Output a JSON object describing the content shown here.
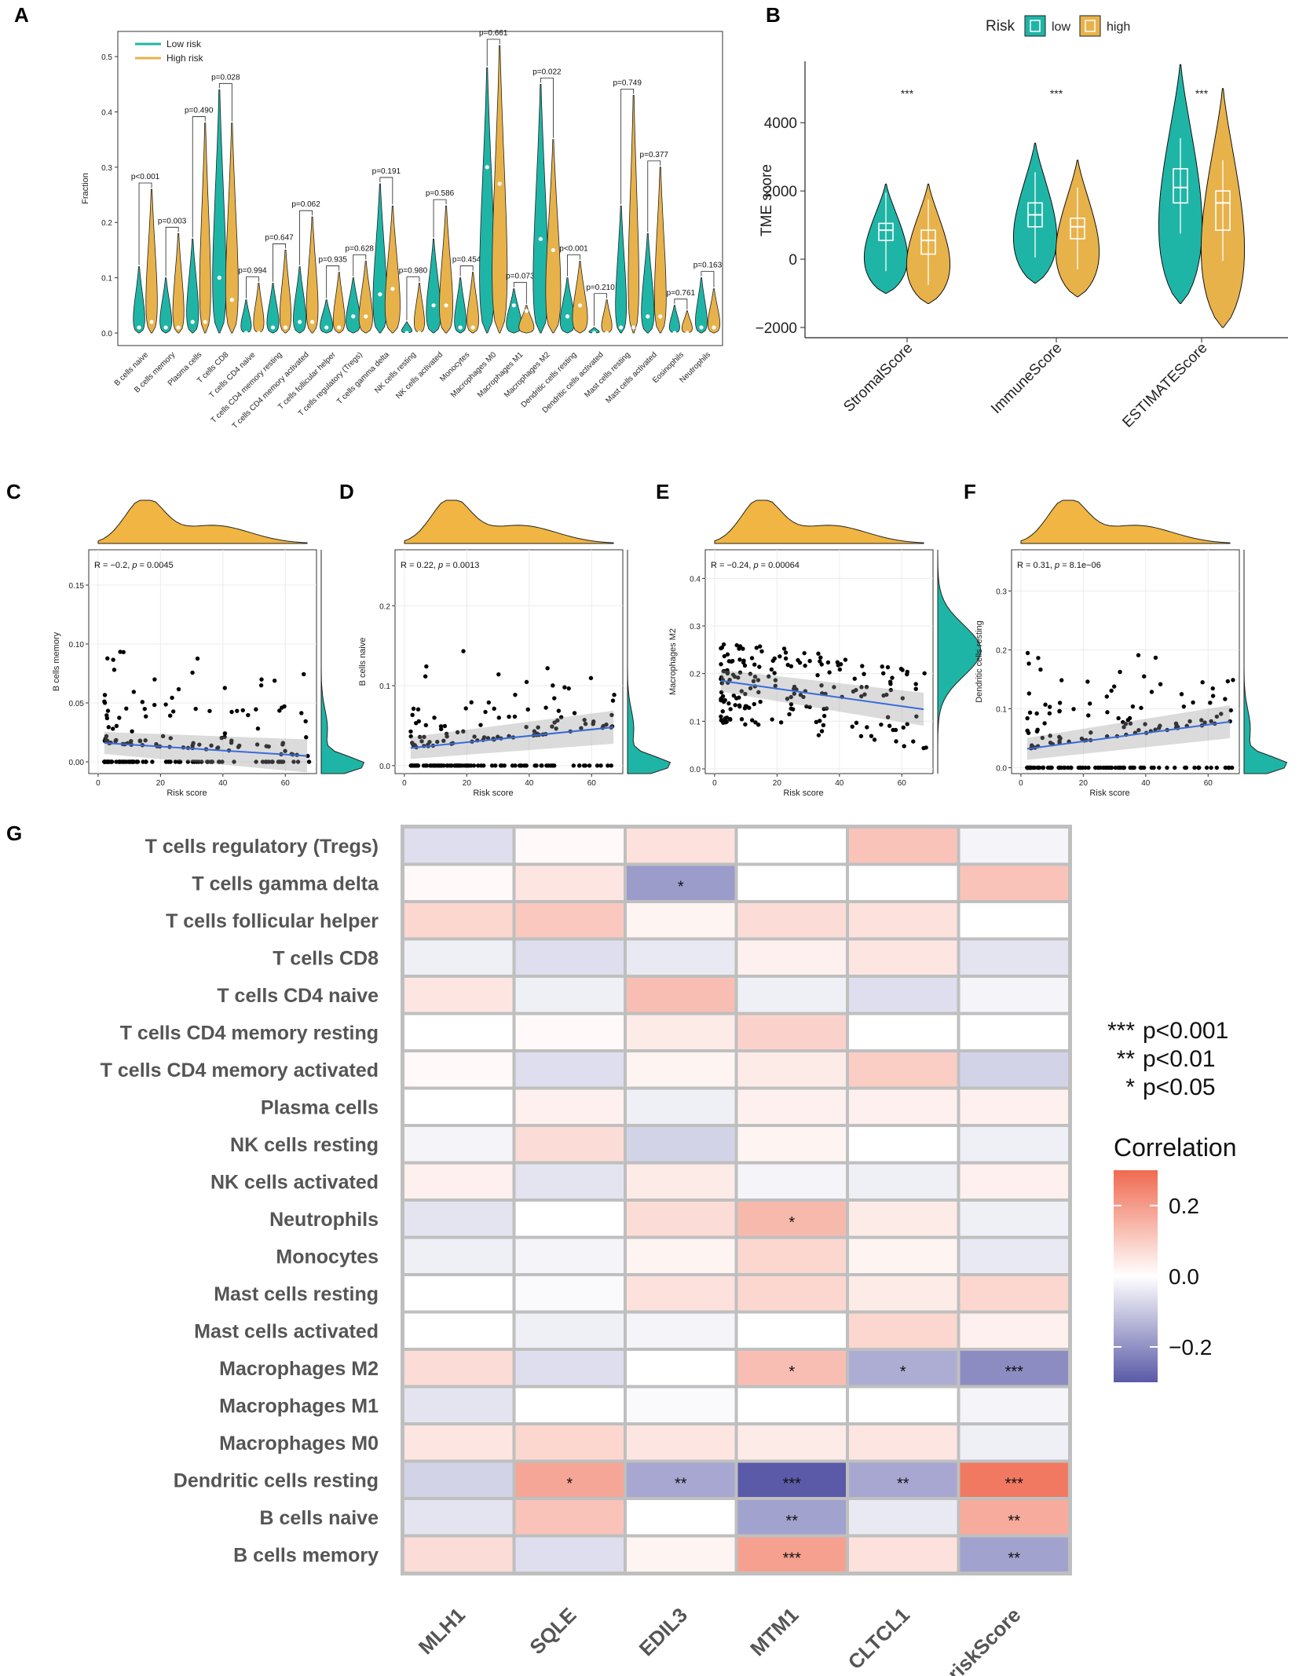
{
  "chart_data": [
    {
      "panel": "A",
      "type": "violin",
      "ylabel": "Fraction",
      "ylim": [
        0,
        0.52
      ],
      "yticks": [
        "0.0",
        "0.1",
        "0.2",
        "0.3",
        "0.4",
        "0.5"
      ],
      "legend": [
        {
          "label": "Low risk",
          "color": "#1fb5a6"
        },
        {
          "label": "High risk",
          "color": "#e8b24a"
        }
      ],
      "categories": [
        "B cells naive",
        "B cells memory",
        "Plasma cells",
        "T cells CD8",
        "T cells CD4 naive",
        "T cells CD4 memory resting",
        "T cells CD4 memory activated",
        "T cells follicular helper",
        "T cells regulatory (Tregs)",
        "T cells gamma delta",
        "NK cells resting",
        "NK cells activated",
        "Monocytes",
        "Macrophages M0",
        "Macrophages M1",
        "Macrophages M2",
        "Dendritic cells resting",
        "Dendritic cells activated",
        "Mast cells resting",
        "Mast cells activated",
        "Eosinophils",
        "Neutrophils"
      ],
      "pvalues": [
        "p<0.001",
        "p=0.003",
        "p=0.490",
        "p=0.028",
        "p=0.994",
        "p=0.647",
        "p=0.062",
        "p=0.935",
        "p=0.628",
        "p=0.191",
        "p=0.980",
        "p=0.586",
        "p=0.454",
        "p=0.661",
        "p=0.073",
        "p=0.022",
        "p<0.001",
        "p=0.210",
        "p=0.749",
        "p=0.377",
        "p=0.761",
        "p=0.163"
      ],
      "low_max": [
        0.12,
        0.1,
        0.17,
        0.44,
        0.06,
        0.09,
        0.12,
        0.06,
        0.1,
        0.27,
        0.02,
        0.17,
        0.1,
        0.48,
        0.08,
        0.45,
        0.1,
        0.01,
        0.23,
        0.18,
        0.05,
        0.1
      ],
      "high_max": [
        0.26,
        0.18,
        0.38,
        0.38,
        0.09,
        0.15,
        0.21,
        0.11,
        0.13,
        0.23,
        0.09,
        0.23,
        0.11,
        0.52,
        0.05,
        0.35,
        0.13,
        0.06,
        0.43,
        0.3,
        0.04,
        0.08
      ],
      "low_median": [
        0.01,
        0.01,
        0.02,
        0.1,
        0.0,
        0.01,
        0.02,
        0.01,
        0.03,
        0.07,
        0.0,
        0.05,
        0.01,
        0.3,
        0.05,
        0.17,
        0.03,
        0.0,
        0.01,
        0.03,
        0.0,
        0.01
      ],
      "high_median": [
        0.02,
        0.01,
        0.02,
        0.06,
        0.0,
        0.01,
        0.02,
        0.01,
        0.03,
        0.08,
        0.0,
        0.05,
        0.01,
        0.27,
        0.04,
        0.15,
        0.05,
        0.0,
        0.01,
        0.03,
        0.0,
        0.01
      ]
    },
    {
      "panel": "B",
      "type": "violin",
      "ylabel": "TME score",
      "ylim": [
        -2300,
        5800
      ],
      "yticks": [
        -2000,
        0,
        2000,
        4000
      ],
      "ytick_labels": [
        "−2000",
        "0",
        "2000",
        "4000"
      ],
      "legend_title": "Risk",
      "legend": [
        {
          "label": "low",
          "color": "#1fb5a6"
        },
        {
          "label": "high",
          "color": "#e8b24a"
        }
      ],
      "categories": [
        "StromalScore",
        "ImmuneScore",
        "ESTIMATEScore"
      ],
      "significance": [
        "***",
        "***",
        "***"
      ],
      "low": {
        "median": [
          850,
          1300,
          2100
        ],
        "q1": [
          550,
          950,
          1650
        ],
        "q3": [
          1050,
          1650,
          2650
        ],
        "min": [
          -1000,
          -700,
          -1300
        ],
        "max": [
          2200,
          3400,
          5700
        ]
      },
      "high": {
        "median": [
          550,
          950,
          1650
        ],
        "q1": [
          150,
          600,
          850
        ],
        "q3": [
          850,
          1200,
          2000
        ],
        "min": [
          -1300,
          -1100,
          -2000
        ],
        "max": [
          2200,
          2900,
          5000
        ]
      }
    },
    {
      "panel": "C",
      "type": "scatter",
      "annotation_prefix": "R = −0.2, ",
      "annotation_p": "p",
      "annotation_suffix": " = 0.0045",
      "xlabel": "Risk score",
      "ylabel": "B cells memory",
      "xlim": [
        -3,
        70
      ],
      "ylim": [
        -0.01,
        0.18
      ],
      "xticks": [
        0,
        20,
        40,
        60
      ],
      "yticks": [
        0.0,
        0.05,
        0.1,
        0.15
      ],
      "ytick_labels": [
        "0.00",
        "0.05",
        "0.10",
        "0.15"
      ],
      "fit": {
        "x0": 2,
        "y0": 0.016,
        "x1": 67,
        "y1": 0.005
      }
    },
    {
      "panel": "D",
      "type": "scatter",
      "annotation_prefix": "R = 0.22, ",
      "annotation_p": "p",
      "annotation_suffix": " = 0.0013",
      "xlabel": "Risk score",
      "ylabel": "B cells naive",
      "xlim": [
        -3,
        70
      ],
      "ylim": [
        -0.01,
        0.27
      ],
      "xticks": [
        0,
        20,
        40,
        60
      ],
      "yticks": [
        0.0,
        0.1,
        0.2
      ],
      "ytick_labels": [
        "0.0",
        "0.1",
        "0.2"
      ],
      "fit": {
        "x0": 2,
        "y0": 0.022,
        "x1": 67,
        "y1": 0.048
      }
    },
    {
      "panel": "E",
      "type": "scatter",
      "annotation_prefix": "R = −0.24, ",
      "annotation_p": "p",
      "annotation_suffix": " = 0.00064",
      "xlabel": "Risk score",
      "ylabel": "Macrophages M2",
      "xlim": [
        -3,
        70
      ],
      "ylim": [
        -0.01,
        0.46
      ],
      "xticks": [
        0,
        20,
        40,
        60
      ],
      "yticks": [
        0.0,
        0.1,
        0.2,
        0.3,
        0.4
      ],
      "ytick_labels": [
        "0.0",
        "0.1",
        "0.2",
        "0.3",
        "0.4"
      ],
      "fit": {
        "x0": 2,
        "y0": 0.185,
        "x1": 67,
        "y1": 0.125
      }
    },
    {
      "panel": "F",
      "type": "scatter",
      "annotation_prefix": "R = 0.31, ",
      "annotation_p": "p",
      "annotation_suffix": " = 8.1e−06",
      "xlabel": "Risk score",
      "ylabel": "Dendritic cells resting",
      "xlim": [
        -3,
        70
      ],
      "ylim": [
        -0.01,
        0.37
      ],
      "xticks": [
        0,
        20,
        40,
        60
      ],
      "yticks": [
        0.0,
        0.1,
        0.2,
        0.3
      ],
      "ytick_labels": [
        "0.0",
        "0.1",
        "0.2",
        "0.3"
      ],
      "fit": {
        "x0": 2,
        "y0": 0.032,
        "x1": 67,
        "y1": 0.078
      }
    },
    {
      "panel": "G",
      "type": "heatmap",
      "rows": [
        "T cells regulatory (Tregs)",
        "T cells gamma delta",
        "T cells follicular helper",
        "T cells CD8",
        "T cells CD4 naive",
        "T cells CD4 memory resting",
        "T cells CD4 memory activated",
        "Plasma cells",
        "NK cells resting",
        "NK cells activated",
        "Neutrophils",
        "Monocytes",
        "Mast cells resting",
        "Mast cells activated",
        "Macrophages M2",
        "Macrophages M1",
        "Macrophages M0",
        "Dendritic cells resting",
        "B cells naive",
        "B cells memory"
      ],
      "columns": [
        "MLH1",
        "SQLE",
        "EDIL3",
        "MTM1",
        "CLTCL1",
        "riskScore"
      ],
      "values": [
        [
          -0.06,
          0.01,
          0.06,
          0.0,
          0.12,
          -0.02
        ],
        [
          0.01,
          0.05,
          -0.18,
          0.0,
          0.0,
          0.12
        ],
        [
          0.08,
          0.11,
          0.02,
          0.07,
          0.06,
          0.0
        ],
        [
          -0.03,
          -0.06,
          -0.04,
          0.03,
          0.05,
          -0.05
        ],
        [
          0.05,
          -0.03,
          0.13,
          -0.03,
          -0.06,
          -0.02
        ],
        [
          0.0,
          0.01,
          0.04,
          0.09,
          0.0,
          0.0
        ],
        [
          0.01,
          -0.06,
          0.02,
          0.04,
          0.1,
          -0.08
        ],
        [
          0.0,
          0.03,
          -0.03,
          0.03,
          0.03,
          0.03
        ],
        [
          -0.02,
          0.07,
          -0.08,
          0.02,
          0.0,
          -0.03
        ],
        [
          0.03,
          -0.05,
          0.04,
          -0.02,
          -0.03,
          0.03
        ],
        [
          -0.05,
          0.0,
          0.07,
          0.14,
          0.04,
          -0.03
        ],
        [
          -0.03,
          -0.02,
          0.02,
          0.08,
          0.02,
          -0.04
        ],
        [
          0.0,
          -0.01,
          0.06,
          0.08,
          0.04,
          0.08
        ],
        [
          0.0,
          -0.03,
          -0.02,
          0.0,
          0.08,
          0.03
        ],
        [
          0.07,
          -0.06,
          0.0,
          0.13,
          -0.15,
          -0.21
        ],
        [
          -0.05,
          0.0,
          -0.01,
          0.0,
          0.0,
          -0.02
        ],
        [
          0.05,
          0.08,
          0.05,
          0.04,
          0.05,
          -0.03
        ],
        [
          -0.08,
          0.18,
          -0.16,
          -0.3,
          -0.16,
          0.27
        ],
        [
          -0.05,
          0.12,
          0.0,
          -0.17,
          -0.04,
          0.17
        ],
        [
          0.07,
          -0.06,
          0.02,
          0.19,
          0.06,
          -0.17
        ]
      ],
      "stars": [
        [
          "",
          "",
          "",
          "",
          "",
          ""
        ],
        [
          "",
          "",
          "*",
          "",
          "",
          ""
        ],
        [
          "",
          "",
          "",
          "",
          "",
          ""
        ],
        [
          "",
          "",
          "",
          "",
          "",
          ""
        ],
        [
          "",
          "",
          "",
          "",
          "",
          ""
        ],
        [
          "",
          "",
          "",
          "",
          "",
          ""
        ],
        [
          "",
          "",
          "",
          "",
          "",
          ""
        ],
        [
          "",
          "",
          "",
          "",
          "",
          ""
        ],
        [
          "",
          "",
          "",
          "",
          "",
          ""
        ],
        [
          "",
          "",
          "",
          "",
          "",
          ""
        ],
        [
          "",
          "",
          "",
          "*",
          "",
          ""
        ],
        [
          "",
          "",
          "",
          "",
          "",
          ""
        ],
        [
          "",
          "",
          "",
          "",
          "",
          ""
        ],
        [
          "",
          "",
          "",
          "",
          "",
          ""
        ],
        [
          "",
          "",
          "",
          "*",
          "*",
          "***"
        ],
        [
          "",
          "",
          "",
          "",
          "",
          ""
        ],
        [
          "",
          "",
          "",
          "",
          "",
          ""
        ],
        [
          "",
          "*",
          "**",
          "***",
          "**",
          "***"
        ],
        [
          "",
          "",
          "",
          "**",
          "",
          "**"
        ],
        [
          "",
          "",
          "",
          "***",
          "",
          "**"
        ]
      ],
      "significance_legend": [
        {
          "stars": "***",
          "label": "p<0.001"
        },
        {
          "stars": "**",
          "label": "p<0.01"
        },
        {
          "stars": "*",
          "label": "p<0.05"
        }
      ],
      "colorbar": {
        "title": "Correlation",
        "ticks": [
          0.2,
          0.0,
          -0.2
        ],
        "tick_labels": [
          "0.2",
          "0.0",
          "−0.2"
        ],
        "range": [
          -0.3,
          0.3
        ],
        "colors": [
          "#5a5aa8",
          "#ffffff",
          "#f06a50"
        ]
      }
    }
  ],
  "panel_letters": [
    "A",
    "B",
    "C",
    "D",
    "E",
    "F",
    "G"
  ]
}
